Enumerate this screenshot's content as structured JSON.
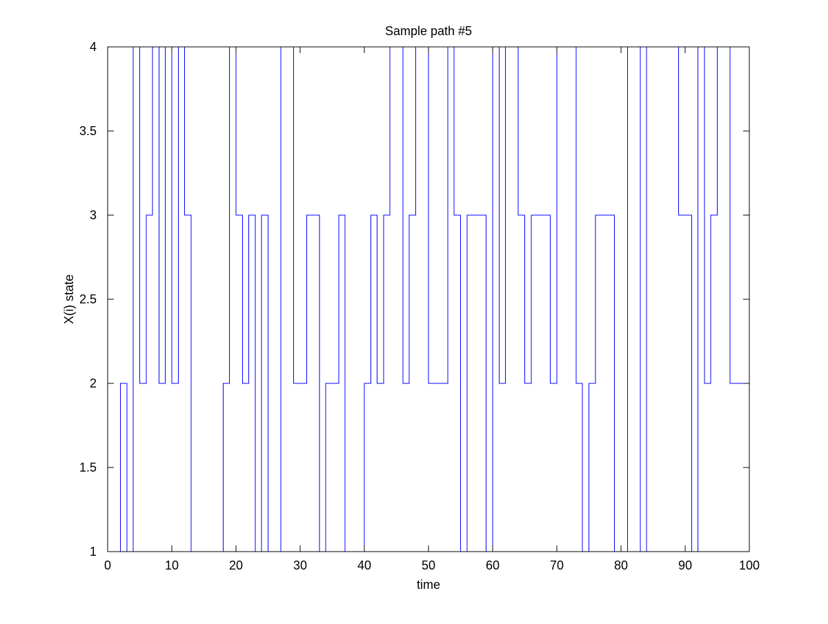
{
  "chart_data": {
    "type": "line",
    "style": "stairs",
    "title": "Sample path #5",
    "xlabel": "time",
    "ylabel": "X(i) state",
    "xlim": [
      0,
      100
    ],
    "ylim": [
      1,
      4
    ],
    "xticks": [
      0,
      10,
      20,
      30,
      40,
      50,
      60,
      70,
      80,
      90,
      100
    ],
    "yticks": [
      1,
      1.5,
      2,
      2.5,
      3,
      3.5,
      4
    ],
    "xtick_labels": [
      "0",
      "10",
      "20",
      "30",
      "40",
      "50",
      "60",
      "70",
      "80",
      "90",
      "100"
    ],
    "ytick_labels": [
      "1",
      "1.5",
      "2",
      "2.5",
      "3",
      "3.5",
      "4"
    ],
    "grid": false,
    "line_color": "#0000ff",
    "series": [
      {
        "x": [
          0,
          1,
          2,
          3,
          4,
          5,
          6,
          7,
          8,
          9,
          10,
          11,
          12,
          13,
          14,
          15,
          16,
          17,
          18,
          19,
          20,
          21,
          22,
          23,
          24,
          25,
          26,
          27,
          28,
          29,
          30,
          31,
          32,
          33,
          34,
          35,
          36,
          37,
          38,
          39,
          40,
          41,
          42,
          43,
          44,
          45,
          46,
          47,
          48,
          49,
          50,
          51,
          52,
          53,
          54,
          55,
          56,
          57,
          58,
          59,
          60,
          61,
          62,
          63,
          64,
          65,
          66,
          67,
          68,
          69,
          70,
          71,
          72,
          73,
          74,
          75,
          76,
          77,
          78,
          79,
          80,
          81,
          82,
          83,
          84,
          85,
          86,
          87,
          88,
          89,
          90,
          91,
          92,
          93,
          94,
          95,
          96,
          97,
          98,
          99,
          100
        ],
        "y": [
          1,
          1,
          2,
          1,
          4,
          2,
          3,
          4,
          2,
          4,
          2,
          4,
          3,
          1,
          1,
          1,
          1,
          1,
          2,
          4,
          3,
          2,
          3,
          1,
          3,
          1,
          1,
          4,
          4,
          2,
          2,
          3,
          3,
          1,
          2,
          2,
          3,
          1,
          1,
          1,
          2,
          3,
          2,
          3,
          4,
          4,
          2,
          3,
          4,
          4,
          2,
          2,
          2,
          4,
          3,
          1,
          3,
          3,
          3,
          1,
          4,
          2,
          4,
          4,
          3,
          2,
          3,
          3,
          3,
          2,
          4,
          4,
          4,
          2,
          1,
          2,
          3,
          3,
          3,
          1,
          1,
          4,
          4,
          1,
          4,
          4,
          4,
          4,
          4,
          3,
          3,
          1,
          4,
          2,
          3,
          4,
          4,
          2,
          2,
          2,
          4
        ]
      }
    ]
  }
}
